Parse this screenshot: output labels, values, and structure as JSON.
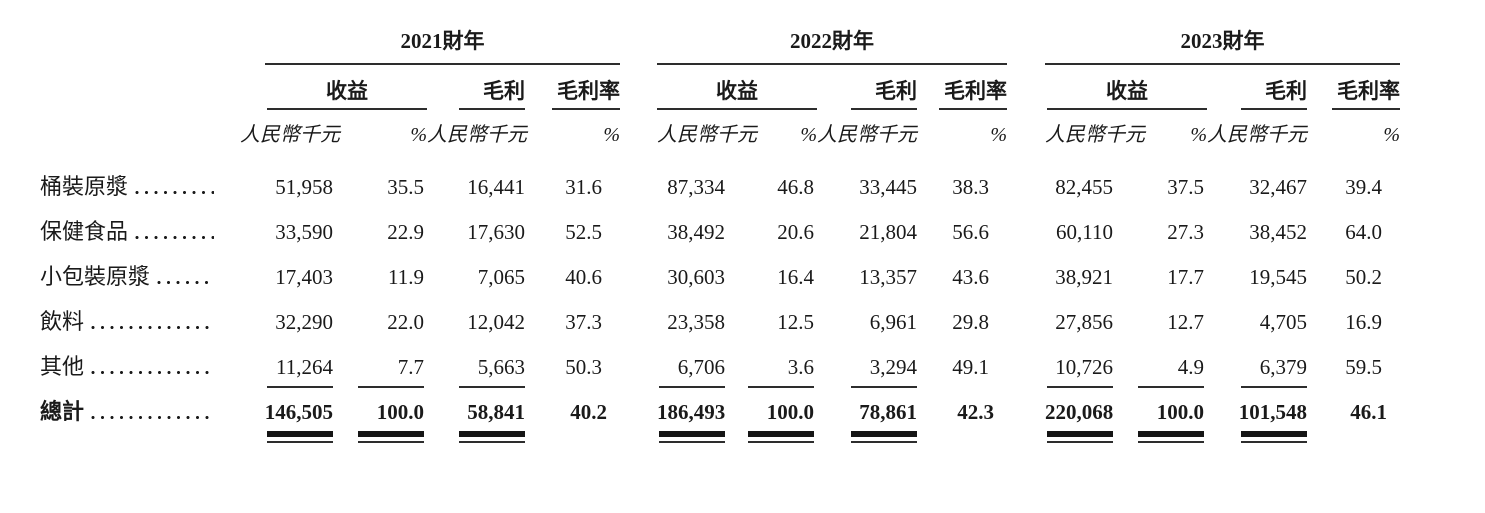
{
  "columns": {
    "revenue": "收益",
    "gross_profit": "毛利",
    "gross_margin": "毛利率",
    "rmb_thousand": "人民幣千元",
    "percent_sign": "%"
  },
  "year_groups": [
    {
      "year": "2021財年"
    },
    {
      "year": "2022財年"
    },
    {
      "year": "2023財年"
    }
  ],
  "rows": [
    {
      "label": "桶裝原漿",
      "groups": [
        [
          "51,958",
          "35.5",
          "16,441",
          "31.6"
        ],
        [
          "87,334",
          "46.8",
          "33,445",
          "38.3"
        ],
        [
          "82,455",
          "37.5",
          "32,467",
          "39.4"
        ]
      ]
    },
    {
      "label": "保健食品",
      "groups": [
        [
          "33,590",
          "22.9",
          "17,630",
          "52.5"
        ],
        [
          "38,492",
          "20.6",
          "21,804",
          "56.6"
        ],
        [
          "60,110",
          "27.3",
          "38,452",
          "64.0"
        ]
      ]
    },
    {
      "label": "小包裝原漿",
      "groups": [
        [
          "17,403",
          "11.9",
          "7,065",
          "40.6"
        ],
        [
          "30,603",
          "16.4",
          "13,357",
          "43.6"
        ],
        [
          "38,921",
          "17.7",
          "19,545",
          "50.2"
        ]
      ]
    },
    {
      "label": "飲料",
      "groups": [
        [
          "32,290",
          "22.0",
          "12,042",
          "37.3"
        ],
        [
          "23,358",
          "12.5",
          "6,961",
          "29.8"
        ],
        [
          "27,856",
          "12.7",
          "4,705",
          "16.9"
        ]
      ]
    },
    {
      "label": "其他",
      "groups": [
        [
          "11,264",
          "7.7",
          "5,663",
          "50.3"
        ],
        [
          "6,706",
          "3.6",
          "3,294",
          "49.1"
        ],
        [
          "10,726",
          "4.9",
          "6,379",
          "59.5"
        ]
      ]
    }
  ],
  "total": {
    "label": "總計",
    "groups": [
      [
        "146,505",
        "100.0",
        "58,841",
        "40.2"
      ],
      [
        "186,493",
        "100.0",
        "78,861",
        "42.3"
      ],
      [
        "220,068",
        "100.0",
        "101,548",
        "46.1"
      ]
    ]
  }
}
